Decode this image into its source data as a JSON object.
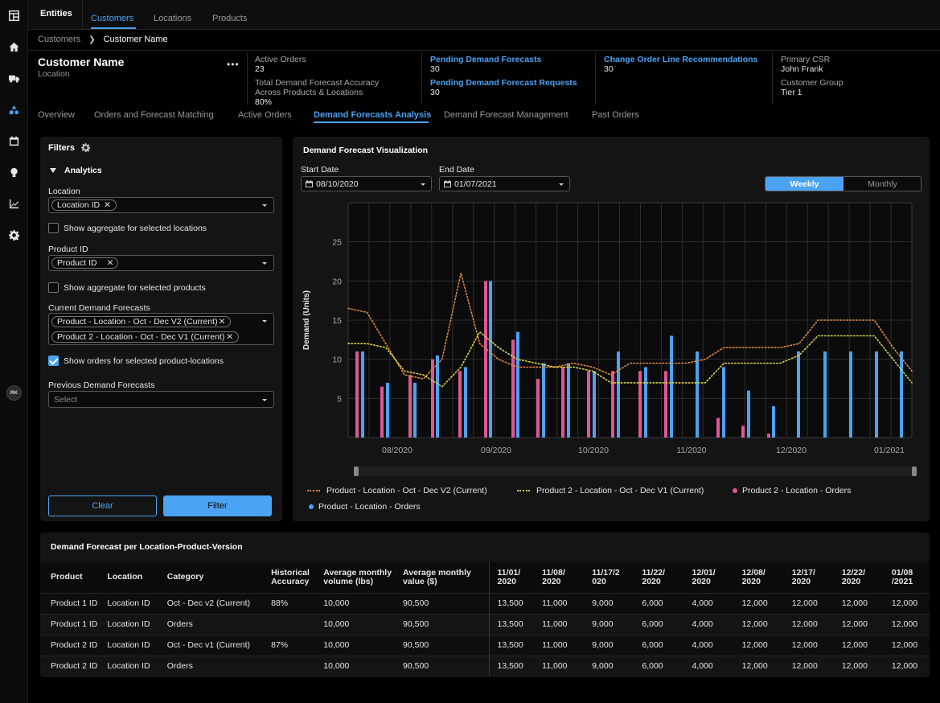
{
  "nav": {
    "icons": [
      "app-grid-icon",
      "home-icon",
      "truck-icon",
      "shapes-icon",
      "calendar-icon",
      "lightbulb-icon",
      "line-chart-icon",
      "gear-icon"
    ],
    "avatar": "RK"
  },
  "topbar": {
    "entities_label": "Entities",
    "tabs": [
      {
        "label": "Customers",
        "active": true
      },
      {
        "label": "Locations",
        "active": false
      },
      {
        "label": "Products",
        "active": false
      }
    ]
  },
  "breadcrumb": {
    "parent": "Customers",
    "current": "Customer Name"
  },
  "header": {
    "customer_name": "Customer Name",
    "location": "Location",
    "more": "•••",
    "metrics": {
      "active_orders_label": "Active Orders",
      "active_orders_value": "23",
      "accuracy_label_1": "Total Demand Forecast Accuracy",
      "accuracy_label_2": "Across Products & Locations",
      "accuracy_value": "80%",
      "pending_forecasts_label": "Pending Demand Forecasts",
      "pending_forecasts_value": "30",
      "pending_requests_label": "Pending Demand Forecast Requests",
      "pending_requests_value": "30",
      "change_order_label": "Change Order Line Recommendations",
      "change_order_value": "30",
      "primary_csr_label": "Primary CSR",
      "primary_csr_value": "John Frank",
      "customer_group_label": "Customer Group",
      "customer_group_value": "Tier 1"
    }
  },
  "subnav": {
    "tabs": [
      {
        "label": "Overview",
        "active": false
      },
      {
        "label": "Orders and Forecast Matching",
        "active": false
      },
      {
        "label": "Active Orders",
        "active": false
      },
      {
        "label": "Demand Forecasts Analysis",
        "active": true
      },
      {
        "label": "Demand Forecast Management",
        "active": false
      },
      {
        "label": "Past Orders",
        "active": false
      }
    ]
  },
  "filters": {
    "title": "Filters",
    "section": "Analytics",
    "location_label": "Location",
    "location_chip": "Location ID",
    "aggregate_locations": "Show aggregate for selected locations",
    "product_label": "Product ID",
    "product_chip": "Product ID",
    "aggregate_products": "Show aggregate for selected products",
    "current_label": "Current Demand Forecasts",
    "current_chips": [
      "Product - Location - Oct - Dec V2 (Current)",
      "Product 2 - Location - Oct - Dec V1 (Current)"
    ],
    "show_orders": "Show orders for selected product-locations",
    "previous_label": "Previous Demand Forecasts",
    "previous_placeholder": "Select",
    "clear_label": "Clear",
    "filter_label": "Filter"
  },
  "viz": {
    "title": "Demand Forecast Visualization",
    "start_label": "Start Date",
    "start_value": "08/10/2020",
    "end_label": "End Date",
    "end_value": "01/07/2021",
    "weekly": "Weekly",
    "monthly": "Monthly"
  },
  "chart_data": {
    "type": "bar",
    "ylabel": "Demand (Units)",
    "ylim": [
      0,
      30
    ],
    "yticks": [
      5,
      10,
      15,
      20,
      25
    ],
    "x_tick_labels": [
      "08/2020",
      "09/2020",
      "10/2020",
      "11/2020",
      "12/2020",
      "01/2021"
    ],
    "grid": true,
    "legend_placement": "bottom",
    "colors": {
      "v2_line": "#e08a3c",
      "v1_line": "#d9d14a",
      "p2_orders": "#e0559a",
      "p1_orders": "#4aa3f3"
    },
    "series": [
      {
        "name": "Product - Location - Oct - Dec V2 (Current)",
        "kind": "dotted-line",
        "values": [
          16.5,
          16,
          12,
          8,
          7.5,
          10,
          21,
          12,
          10,
          9,
          9,
          9,
          9.5,
          9,
          8,
          9.5,
          9.5,
          9.5,
          9.5,
          10,
          11.5,
          11.5,
          11.5,
          11.5,
          12,
          15,
          15,
          15,
          15,
          11.5,
          8.5
        ]
      },
      {
        "name": "Product 2 - Location - Oct - Dec V1 (Current)",
        "kind": "dotted-line",
        "values": [
          12,
          12,
          11.5,
          8.5,
          8,
          6.5,
          9,
          13.5,
          11.5,
          10,
          9.5,
          9,
          9,
          8.5,
          7,
          7,
          7,
          7,
          7,
          7,
          9.5,
          9.5,
          9.5,
          9.5,
          10.5,
          13,
          13,
          13,
          13,
          10,
          7
        ]
      },
      {
        "name": "Product 2 - Location - Orders",
        "kind": "bars",
        "values": [
          11,
          6.5,
          8,
          10,
          8.5,
          20,
          12.5,
          7.5,
          9,
          8.5,
          8.5,
          8.5,
          8.5,
          2.5,
          1.5,
          0.5
        ]
      },
      {
        "name": "Product - Location - Orders",
        "kind": "bars",
        "values": [
          11,
          7,
          7,
          10.5,
          9,
          20,
          13.5,
          9.5,
          9.5,
          8.5,
          11,
          9,
          13,
          11,
          9,
          6,
          4,
          11,
          11,
          11,
          11,
          11
        ]
      }
    ]
  },
  "table": {
    "title": "Demand Forecast per Location-Product-Version",
    "headers": [
      "Product",
      "Location",
      "Category",
      "Historical Accuracy",
      "Average monthly volume (lbs)",
      "Average monthly value ($)",
      "11/01/ 2020",
      "11/08/ 2020",
      "11/17/2 020",
      "11/22/ 2020",
      "12/01/ 2020",
      "12/08/ 2020",
      "12/17/ 2020",
      "12/22/ 2020",
      "01/08 /2021"
    ],
    "rows": [
      [
        "Product 1 ID",
        "Location ID",
        "Oct - Dec v2 (Current)",
        "88%",
        "10,000",
        "90,500",
        "13,500",
        "11,000",
        "9,000",
        "6,000",
        "4,000",
        "12,000",
        "12,000",
        "12,000",
        "12,000"
      ],
      [
        "Product 1 ID",
        "Location ID",
        "Orders",
        "",
        "10,000",
        "90,500",
        "13,500",
        "11,000",
        "9,000",
        "6,000",
        "4,000",
        "12,000",
        "12,000",
        "12,000",
        "12,000"
      ],
      [
        "Product 2 ID",
        "Location ID",
        "Oct - Dec v1 (Current)",
        "87%",
        "10,000",
        "90,500",
        "13,500",
        "11,000",
        "9,000",
        "6,000",
        "4,000",
        "12,000",
        "12,000",
        "12,000",
        "12,000"
      ],
      [
        "Product 2 ID",
        "Location ID",
        "Orders",
        "",
        "10,000",
        "90,500",
        "13,500",
        "11,000",
        "9,000",
        "6,000",
        "4,000",
        "12,000",
        "12,000",
        "12,000",
        "12,000"
      ]
    ]
  }
}
